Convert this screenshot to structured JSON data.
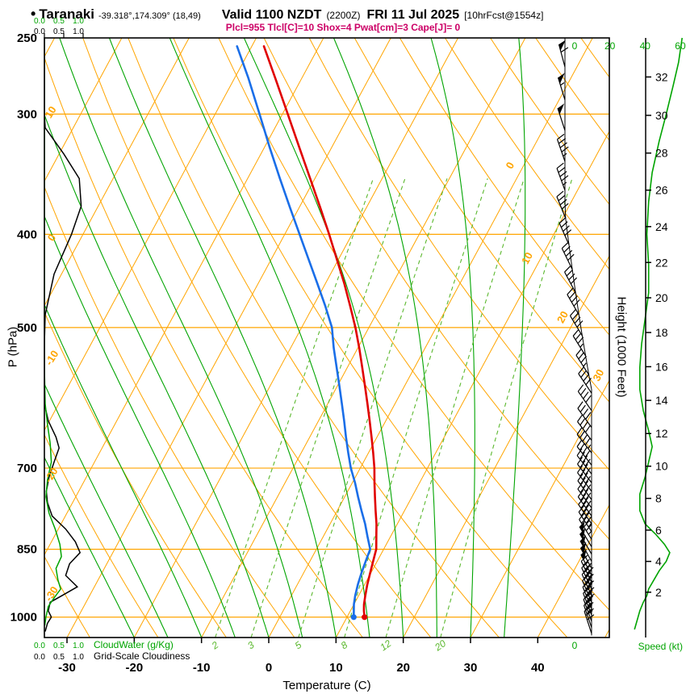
{
  "header": {
    "bullet": "•",
    "station": "Taranaki",
    "coords": "-39.318°,174.309° (18,49)",
    "valid": "Valid 1100 NZDT",
    "valid_z": "(2200Z)",
    "date": "FRI 11 Jul 2025",
    "fcst": "[10hrFcst@1554z]",
    "params": "Plcl=955 Tlcl[C]=10 Shox=4 Pwat[cm]=3 Cape[J]= 0"
  },
  "axes": {
    "left_label": "P (hPa)",
    "bottom_label": "Temperature (C)",
    "right_label": "Height (1000 Feet)",
    "speed_label": "Speed (kt)",
    "speed_zero": "0",
    "pressure_ticks": [
      250,
      300,
      400,
      500,
      700,
      850,
      1000
    ],
    "temp_ticks": [
      -30,
      -20,
      -10,
      0,
      10,
      20,
      30,
      40
    ],
    "height_ticks": [
      2,
      4,
      6,
      8,
      10,
      12,
      14,
      16,
      18,
      20,
      22,
      24,
      26,
      28,
      30,
      32
    ],
    "speed_ticks": [
      0,
      20,
      40,
      60
    ],
    "cw_scale": [
      "0.0",
      "0.5",
      "1.0"
    ],
    "gs_scale": [
      "0.0",
      "0.5",
      "1.0"
    ],
    "cloudwater_label": "CloudWater (g/Kg)",
    "cloudiness_label": "Grid-Scale Cloudiness",
    "isotherm_labels": [
      0,
      10,
      20,
      30
    ],
    "adiabat_labels": [
      10,
      0,
      -10,
      -20,
      -30
    ],
    "mixing_labels": [
      2,
      3,
      5,
      8,
      12,
      20
    ]
  },
  "colors": {
    "orange": "#FFA500",
    "green": "#00A400",
    "light_green": "#5BB82E",
    "red": "#E00000",
    "blue": "#1A6EE8",
    "magenta": "#CC0066",
    "black": "#000000"
  },
  "chart_data": {
    "type": "skewt-log-p",
    "pressure_range": [
      1050,
      250
    ],
    "surface_temp_range": [
      -33,
      50
    ],
    "isotherms": {
      "min": -100,
      "max": 50,
      "step": 10
    },
    "dry_adiabats": {
      "min": -40,
      "max": 160,
      "step": 10
    },
    "moist_adiabats": [
      -20,
      -15,
      -10,
      -5,
      0,
      5,
      10,
      15,
      20,
      25,
      30,
      35
    ],
    "mixing_ratios": [
      2,
      3,
      5,
      8,
      12,
      20
    ],
    "temperature_profile": [
      [
        1000,
        12.6
      ],
      [
        985,
        12.0
      ],
      [
        970,
        11.5
      ],
      [
        950,
        11.0
      ],
      [
        925,
        10.4
      ],
      [
        900,
        9.9
      ],
      [
        875,
        9.4
      ],
      [
        850,
        8.9
      ],
      [
        825,
        7.9
      ],
      [
        800,
        6.9
      ],
      [
        775,
        5.7
      ],
      [
        750,
        4.5
      ],
      [
        725,
        3.3
      ],
      [
        700,
        2.1
      ],
      [
        675,
        0.7
      ],
      [
        650,
        -0.8
      ],
      [
        625,
        -2.4
      ],
      [
        600,
        -4.1
      ],
      [
        575,
        -5.9
      ],
      [
        550,
        -7.8
      ],
      [
        525,
        -9.8
      ],
      [
        500,
        -12.0
      ],
      [
        475,
        -14.5
      ],
      [
        450,
        -17.2
      ],
      [
        425,
        -20.2
      ],
      [
        400,
        -23.4
      ],
      [
        375,
        -26.9
      ],
      [
        350,
        -30.7
      ],
      [
        325,
        -34.8
      ],
      [
        300,
        -39.2
      ],
      [
        275,
        -44.0
      ],
      [
        255,
        -48.2
      ]
    ],
    "dewpoint_profile": [
      [
        1000,
        11.0
      ],
      [
        985,
        10.5
      ],
      [
        970,
        10.0
      ],
      [
        950,
        9.5
      ],
      [
        925,
        9.0
      ],
      [
        900,
        8.6
      ],
      [
        875,
        8.3
      ],
      [
        850,
        8.0
      ],
      [
        825,
        6.6
      ],
      [
        800,
        5.2
      ],
      [
        775,
        3.6
      ],
      [
        750,
        2.0
      ],
      [
        725,
        0.4
      ],
      [
        700,
        -1.4
      ],
      [
        675,
        -3.0
      ],
      [
        650,
        -4.6
      ],
      [
        625,
        -6.2
      ],
      [
        600,
        -7.9
      ],
      [
        575,
        -9.7
      ],
      [
        550,
        -11.6
      ],
      [
        525,
        -13.6
      ],
      [
        500,
        -15.5
      ],
      [
        475,
        -18.2
      ],
      [
        450,
        -21.2
      ],
      [
        425,
        -24.4
      ],
      [
        400,
        -27.8
      ],
      [
        375,
        -31.4
      ],
      [
        350,
        -35.2
      ],
      [
        325,
        -39.2
      ],
      [
        300,
        -43.4
      ],
      [
        275,
        -48.0
      ],
      [
        255,
        -52.2
      ]
    ],
    "wind_barbs": [
      [
        268,
        60,
        345
      ],
      [
        290,
        57,
        343
      ],
      [
        312,
        52,
        342
      ],
      [
        336,
        47,
        341
      ],
      [
        360,
        44,
        340
      ],
      [
        385,
        42,
        338
      ],
      [
        410,
        41,
        336
      ],
      [
        435,
        40,
        334
      ],
      [
        460,
        40,
        332
      ],
      [
        485,
        39,
        330
      ],
      [
        510,
        38,
        329
      ],
      [
        535,
        37,
        328
      ],
      [
        560,
        37,
        327
      ],
      [
        585,
        38,
        326
      ],
      [
        610,
        39,
        325
      ],
      [
        635,
        41,
        324
      ],
      [
        655,
        42,
        323
      ],
      [
        675,
        43,
        322
      ],
      [
        695,
        42,
        322
      ],
      [
        710,
        41,
        322
      ],
      [
        725,
        40,
        323
      ],
      [
        740,
        39,
        323
      ],
      [
        755,
        38,
        324
      ],
      [
        770,
        38,
        324
      ],
      [
        785,
        39,
        325
      ],
      [
        800,
        41,
        326
      ],
      [
        815,
        43,
        327
      ],
      [
        830,
        46,
        328
      ],
      [
        845,
        49,
        329
      ],
      [
        860,
        52,
        330
      ],
      [
        875,
        52,
        331
      ],
      [
        890,
        50,
        332
      ],
      [
        905,
        48,
        333
      ],
      [
        920,
        46,
        334
      ],
      [
        935,
        44,
        335
      ],
      [
        950,
        42,
        336
      ],
      [
        965,
        40,
        337
      ],
      [
        980,
        38,
        338
      ],
      [
        995,
        36,
        339
      ],
      [
        1010,
        34,
        340
      ],
      [
        1025,
        31,
        341
      ],
      [
        1040,
        28,
        342
      ]
    ],
    "speed_profile": [
      [
        250,
        61
      ],
      [
        265,
        59
      ],
      [
        280,
        56
      ],
      [
        300,
        52
      ],
      [
        320,
        48
      ],
      [
        345,
        44
      ],
      [
        370,
        42
      ],
      [
        400,
        41
      ],
      [
        430,
        42
      ],
      [
        460,
        42
      ],
      [
        490,
        40
      ],
      [
        520,
        38
      ],
      [
        550,
        37
      ],
      [
        580,
        37
      ],
      [
        610,
        39
      ],
      [
        640,
        42
      ],
      [
        665,
        44
      ],
      [
        690,
        42
      ],
      [
        715,
        40
      ],
      [
        745,
        37
      ],
      [
        775,
        37
      ],
      [
        800,
        40
      ],
      [
        820,
        46
      ],
      [
        840,
        51
      ],
      [
        857,
        54
      ],
      [
        875,
        52
      ],
      [
        895,
        48
      ],
      [
        915,
        45
      ],
      [
        935,
        42
      ],
      [
        950,
        41
      ],
      [
        965,
        39
      ],
      [
        985,
        37
      ],
      [
        1000,
        36
      ],
      [
        1015,
        35
      ],
      [
        1030,
        34
      ]
    ],
    "cloudiness_profile": [
      [
        250,
        0
      ],
      [
        300,
        0
      ],
      [
        310,
        0.02
      ],
      [
        330,
        0.5
      ],
      [
        350,
        0.9
      ],
      [
        374,
        0.95
      ],
      [
        400,
        0.7
      ],
      [
        440,
        0.25
      ],
      [
        485,
        0.02
      ],
      [
        520,
        0
      ],
      [
        600,
        0
      ],
      [
        625,
        0.1
      ],
      [
        650,
        0.3
      ],
      [
        667,
        0.38
      ],
      [
        690,
        0.25
      ],
      [
        715,
        0.12
      ],
      [
        740,
        0.05
      ],
      [
        760,
        0.08
      ],
      [
        785,
        0.2
      ],
      [
        810,
        0.55
      ],
      [
        835,
        0.8
      ],
      [
        857,
        0.92
      ],
      [
        880,
        0.65
      ],
      [
        905,
        0.55
      ],
      [
        930,
        0.85
      ],
      [
        950,
        0.45
      ],
      [
        965,
        0.15
      ],
      [
        985,
        0.1
      ],
      [
        1000,
        0.18
      ],
      [
        1015,
        0.08
      ],
      [
        1035,
        0.02
      ]
    ],
    "cloudwater_profile": [
      [
        250,
        0
      ],
      [
        550,
        0
      ],
      [
        600,
        0.02
      ],
      [
        630,
        0.08
      ],
      [
        660,
        0.15
      ],
      [
        690,
        0.18
      ],
      [
        720,
        0.08
      ],
      [
        750,
        0.04
      ],
      [
        780,
        0.12
      ],
      [
        810,
        0.28
      ],
      [
        840,
        0.4
      ],
      [
        865,
        0.44
      ],
      [
        890,
        0.3
      ],
      [
        915,
        0.35
      ],
      [
        935,
        0.42
      ],
      [
        955,
        0.25
      ],
      [
        975,
        0.1
      ],
      [
        1000,
        0.04
      ],
      [
        1020,
        0.01
      ]
    ]
  }
}
